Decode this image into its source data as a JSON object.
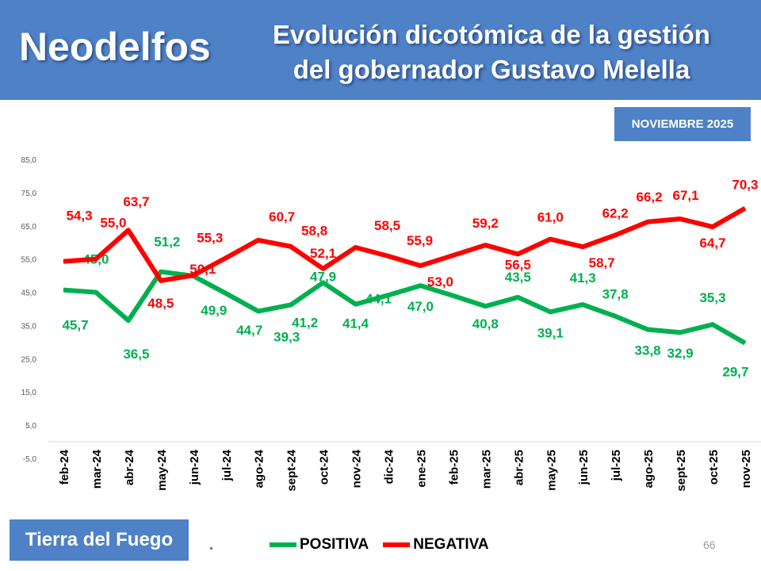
{
  "header": {
    "brand": "Neodelfos",
    "title_line1": "Evolución dicotómica de la gestión",
    "title_line2": "del gobernador Gustavo Melella"
  },
  "date_badge": "NOVIEMBRE 2025",
  "region": "Tierra del Fuego",
  "page_number": "66",
  "colors": {
    "header": "#4f81c7",
    "positiva": "#00b050",
    "negativa": "#ff0000"
  },
  "chart_data": {
    "type": "line",
    "categories": [
      "feb-24",
      "mar-24",
      "abr-24",
      "may-24",
      "jun-24",
      "jul-24",
      "ago-24",
      "sept-24",
      "oct-24",
      "nov-24",
      "dic-24",
      "ene-25",
      "feb-25",
      "mar-25",
      "abr-25",
      "may-25",
      "jun-25",
      "jul-25",
      "ago-25",
      "sept-25",
      "oct-25",
      "nov-25"
    ],
    "yticks": [
      "85,0",
      "75,0",
      "65,0",
      "55,0",
      "45,0",
      "35,0",
      "25,0",
      "15,0",
      "5,0",
      "-5,0"
    ],
    "ylim": [
      -5,
      85
    ],
    "grid": false,
    "legend": "bottom",
    "series": [
      {
        "name": "POSITIVA",
        "color": "#00b050",
        "values": [
          45.7,
          45.0,
          36.5,
          51.2,
          49.9,
          44.7,
          39.3,
          41.2,
          47.9,
          41.4,
          44.1,
          47.0,
          44.0,
          40.8,
          43.5,
          39.1,
          41.3,
          37.8,
          33.8,
          32.9,
          35.3,
          29.7
        ],
        "labels": [
          "45,7",
          "45,0",
          "36,5",
          "51,2",
          "49,9",
          "44,7",
          "39,3",
          "41,2",
          "47,9",
          "41,4",
          "44,1",
          "47,0",
          null,
          "40,8",
          "43,5",
          "39,1",
          "41,3",
          "37,8",
          "33,8",
          "32,9",
          "35,3",
          "29,7"
        ]
      },
      {
        "name": "NEGATIVA",
        "color": "#ff0000",
        "values": [
          54.3,
          55.0,
          63.7,
          48.5,
          50.1,
          55.3,
          60.7,
          58.8,
          52.1,
          58.5,
          55.9,
          53.0,
          56.1,
          59.2,
          56.5,
          61.0,
          58.7,
          62.2,
          66.2,
          67.1,
          64.7,
          70.3
        ],
        "labels": [
          "54,3",
          "55,0",
          "63,7",
          "48,5",
          "50,1",
          "55,3",
          "60,7",
          "58,8",
          "52,1",
          "58,5",
          "55,9",
          "53,0",
          null,
          "59,2",
          "56,5",
          "61,0",
          "58,7",
          "62,2",
          "66,2",
          "67,1",
          "64,7",
          "70,3"
        ]
      }
    ]
  }
}
